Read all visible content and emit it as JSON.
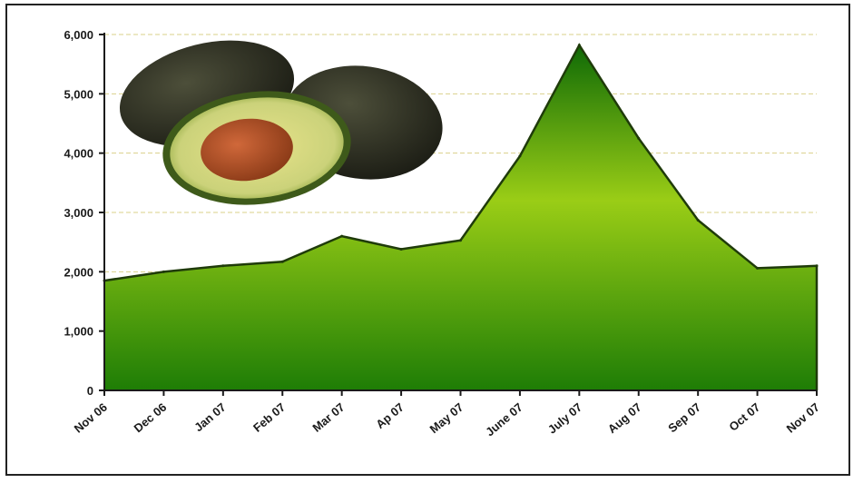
{
  "chart_data": {
    "type": "area",
    "title": "",
    "xlabel": "",
    "ylabel": "",
    "categories": [
      "Nov 06",
      "Dec 06",
      "Jan 07",
      "Feb 07",
      "Mar 07",
      "Ap 07",
      "May 07",
      "June 07",
      "July 07",
      "Aug 07",
      "Sep 07",
      "Oct 07",
      "Nov 07"
    ],
    "series": [
      {
        "values": [
          1850,
          2000,
          2100,
          2170,
          2600,
          2380,
          2530,
          3950,
          5820,
          4250,
          2870,
          2060,
          2100
        ]
      }
    ],
    "ylim": [
      0,
      6000
    ],
    "yticks": [
      0,
      1000,
      2000,
      3000,
      4000,
      5000,
      6000
    ],
    "ytick_labels": [
      "0",
      "1,000",
      "2,000",
      "3,000",
      "4,000",
      "5,000",
      "6,000"
    ],
    "grid": "horizontal dashed",
    "legend": "none",
    "colors": {
      "fill_top": "#9acd16",
      "fill_bottom": "#1e7d06",
      "outline": "#1f3b0a",
      "grid": "#d9d08a"
    },
    "decoration": "avocado-photo"
  }
}
